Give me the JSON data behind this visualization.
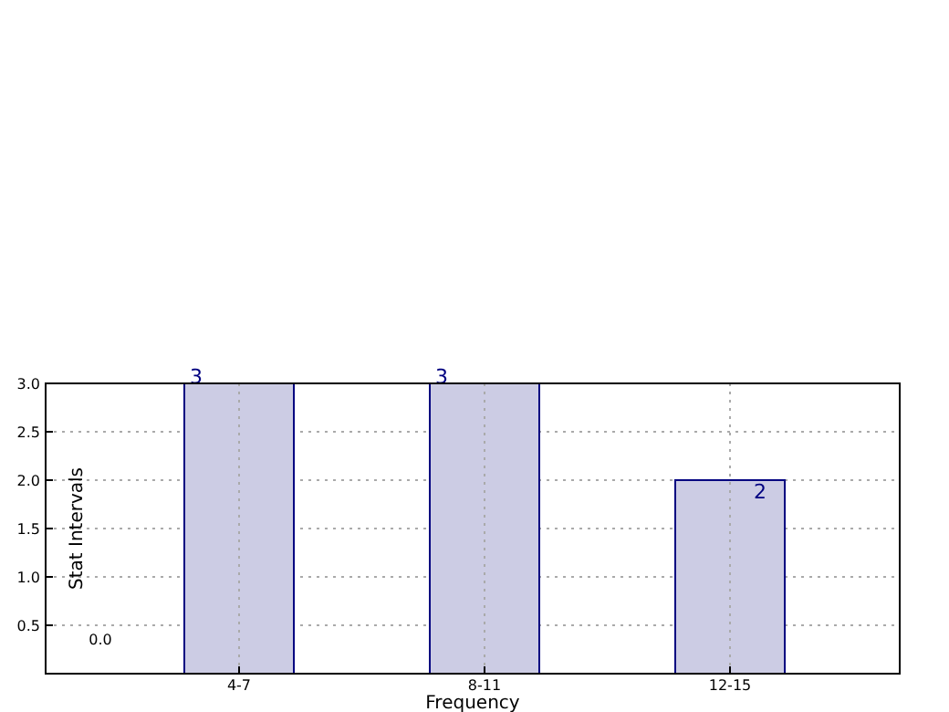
{
  "chart_data": {
    "type": "bar",
    "xlabel": "Frequency",
    "ylabel": "Stat Intervals",
    "categories": [
      "4-7",
      "8-11",
      "12-15"
    ],
    "series": [
      {
        "color": "#cccce4",
        "values": [
          3,
          3,
          2
        ]
      }
    ],
    "ylim": [
      0,
      3.0
    ],
    "yticks": [
      {
        "value": 0.5,
        "label": "0.5"
      },
      {
        "value": 1.0,
        "label": "1.0"
      },
      {
        "value": 1.5,
        "label": "1.5"
      },
      {
        "value": 2.0,
        "label": "2.0"
      },
      {
        "value": 2.5,
        "label": "2.5"
      },
      {
        "value": 3.0,
        "label": "3.0"
      }
    ],
    "grid": true,
    "data_labels": true,
    "annotations": [
      "0.0"
    ]
  }
}
